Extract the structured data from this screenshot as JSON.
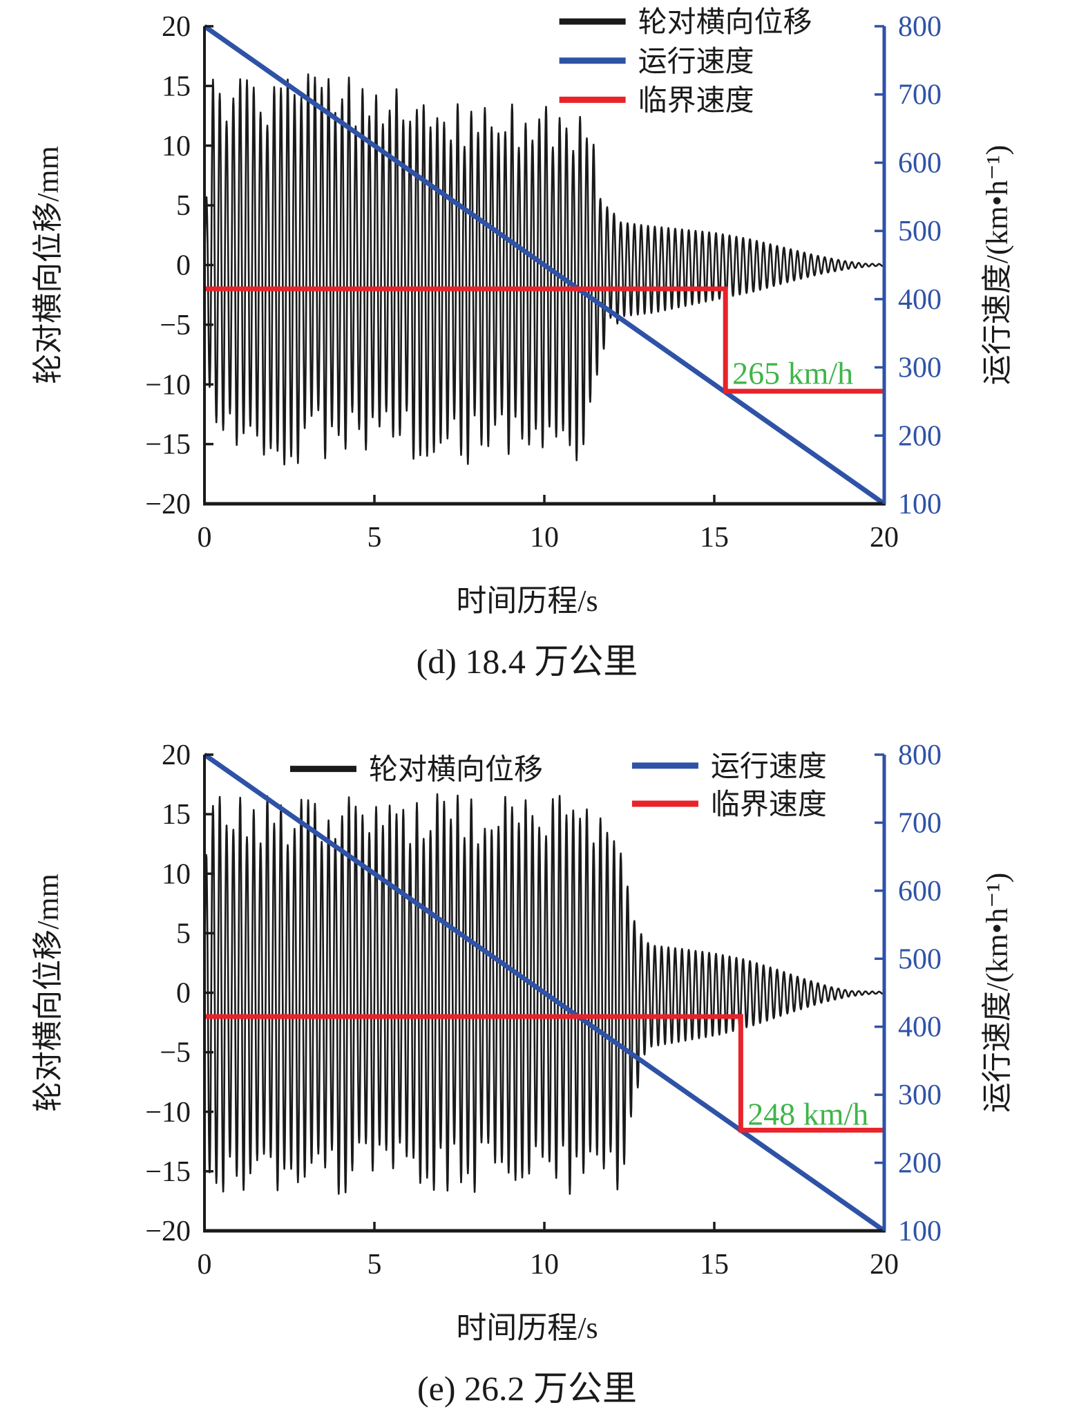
{
  "figure": {
    "colors": {
      "black": "#1a1a1a",
      "blue": "#2e52a5",
      "red": "#e8232a",
      "green": "#3fb549",
      "background": "#ffffff"
    }
  },
  "chart_data": [
    {
      "type": "line",
      "id": "d",
      "caption": "(d) 18.4 万公里",
      "xlabel": "时间历程/s",
      "ylabel_left": "轮对横向位移/mm",
      "ylabel_right": "运行速度/(km•h⁻¹)",
      "x_axis": {
        "min": 0,
        "max": 20,
        "ticks": [
          0,
          5,
          10,
          15,
          20
        ]
      },
      "y_left": {
        "min": -20,
        "max": 20,
        "ticks": [
          -20,
          -15,
          -10,
          -5,
          0,
          5,
          10,
          15,
          20
        ]
      },
      "y_right": {
        "min": 100,
        "max": 800,
        "ticks": [
          100,
          200,
          300,
          400,
          500,
          600,
          700,
          800
        ]
      },
      "legend": {
        "items": [
          {
            "label": "轮对横向位移",
            "color": "black",
            "fx": 0.522,
            "fy": -0.01
          },
          {
            "label": "运行速度",
            "color": "blue",
            "fx": 0.522,
            "fy": 0.072
          },
          {
            "label": "临界速度",
            "color": "red",
            "fx": 0.522,
            "fy": 0.154
          }
        ]
      },
      "series": {
        "displacement": {
          "name": "轮对横向位移",
          "color": "black",
          "freq_hz": 5.0,
          "seed": 3.7,
          "variation": [
            0.7,
            1.0
          ],
          "envelope_up": [
            [
              0,
              5
            ],
            [
              0.12,
              12
            ],
            [
              0.25,
              16.6
            ],
            [
              6.2,
              16.6
            ],
            [
              6.45,
              13.8
            ],
            [
              9.75,
              13.6
            ],
            [
              9.95,
              16.2
            ],
            [
              10.15,
              13.6
            ],
            [
              11.1,
              13.2
            ],
            [
              11.45,
              10.5
            ],
            [
              11.8,
              5.5
            ],
            [
              12.2,
              3.6
            ],
            [
              13.0,
              3.3
            ],
            [
              14.0,
              3.0
            ],
            [
              15.0,
              2.7
            ],
            [
              16.0,
              2.2
            ],
            [
              17.0,
              1.5
            ],
            [
              18.0,
              0.8
            ],
            [
              18.8,
              0.35
            ],
            [
              19.4,
              0.12
            ],
            [
              20,
              0.08
            ]
          ],
          "envelope_dn": [
            [
              0,
              7
            ],
            [
              0.15,
              14
            ],
            [
              0.3,
              16.9
            ],
            [
              11.2,
              16.9
            ],
            [
              11.5,
              12
            ],
            [
              11.9,
              6.5
            ],
            [
              12.3,
              4.3
            ],
            [
              13.2,
              4.0
            ],
            [
              14.2,
              3.4
            ],
            [
              15.2,
              2.8
            ],
            [
              16.2,
              2.2
            ],
            [
              17.2,
              1.4
            ],
            [
              18.2,
              0.7
            ],
            [
              19.0,
              0.3
            ],
            [
              19.6,
              0.1
            ],
            [
              20,
              0.07
            ]
          ]
        },
        "running_speed": {
          "name": "运行速度",
          "color": "blue",
          "points": [
            [
              0,
              800
            ],
            [
              20,
              100
            ]
          ]
        },
        "critical_speed": {
          "name": "临界速度",
          "color": "red",
          "points": [
            [
              0,
              415
            ],
            [
              15.33,
              415
            ],
            [
              15.33,
              265
            ],
            [
              20,
              265
            ]
          ],
          "annotation": {
            "text": "265 km/h",
            "color": "green",
            "t": 15.53,
            "speed": 276
          }
        }
      }
    },
    {
      "type": "line",
      "id": "e",
      "caption": "(e) 26.2 万公里",
      "xlabel": "时间历程/s",
      "ylabel_left": "轮对横向位移/mm",
      "ylabel_right": "运行速度/(km•h⁻¹)",
      "x_axis": {
        "min": 0,
        "max": 20,
        "ticks": [
          0,
          5,
          10,
          15,
          20
        ]
      },
      "y_left": {
        "min": -20,
        "max": 20,
        "ticks": [
          -20,
          -15,
          -10,
          -5,
          0,
          5,
          10,
          15,
          20
        ]
      },
      "y_right": {
        "min": 100,
        "max": 800,
        "ticks": [
          100,
          200,
          300,
          400,
          500,
          600,
          700,
          800
        ]
      },
      "legend": {
        "items": [
          {
            "label": "轮对横向位移",
            "color": "black",
            "fx": 0.126,
            "fy": 0.03
          },
          {
            "label": "运行速度",
            "color": "blue",
            "fx": 0.629,
            "fy": 0.023
          },
          {
            "label": "临界速度",
            "color": "red",
            "fx": 0.629,
            "fy": 0.103
          }
        ]
      },
      "series": {
        "displacement": {
          "name": "轮对横向位移",
          "color": "black",
          "freq_hz": 5.0,
          "seed": 9.2,
          "variation": [
            0.74,
            1.0
          ],
          "envelope_up": [
            [
              0,
              11
            ],
            [
              0.15,
              16.7
            ],
            [
              12.05,
              16.7
            ],
            [
              12.35,
              12
            ],
            [
              12.7,
              5.5
            ],
            [
              13.1,
              4.0
            ],
            [
              14.0,
              3.7
            ],
            [
              15.0,
              3.3
            ],
            [
              15.9,
              2.8
            ],
            [
              16.8,
              2.0
            ],
            [
              17.6,
              1.2
            ],
            [
              18.4,
              0.5
            ],
            [
              19.0,
              0.15
            ],
            [
              20,
              0.08
            ]
          ],
          "envelope_dn": [
            [
              0,
              13
            ],
            [
              0.2,
              17
            ],
            [
              12.25,
              17
            ],
            [
              12.6,
              10
            ],
            [
              13.0,
              4.6
            ],
            [
              14.0,
              4.1
            ],
            [
              15.2,
              3.5
            ],
            [
              16.2,
              2.7
            ],
            [
              17.2,
              1.7
            ],
            [
              18.2,
              0.8
            ],
            [
              19.0,
              0.3
            ],
            [
              19.6,
              0.1
            ],
            [
              20,
              0.07
            ]
          ]
        },
        "running_speed": {
          "name": "运行速度",
          "color": "blue",
          "points": [
            [
              0,
              800
            ],
            [
              20,
              100
            ]
          ]
        },
        "critical_speed": {
          "name": "临界速度",
          "color": "red",
          "points": [
            [
              0,
              415
            ],
            [
              15.78,
              415
            ],
            [
              15.78,
              248
            ],
            [
              20,
              248
            ]
          ],
          "annotation": {
            "text": "248 km/h",
            "color": "green",
            "t": 15.98,
            "speed": 256
          }
        }
      }
    }
  ]
}
